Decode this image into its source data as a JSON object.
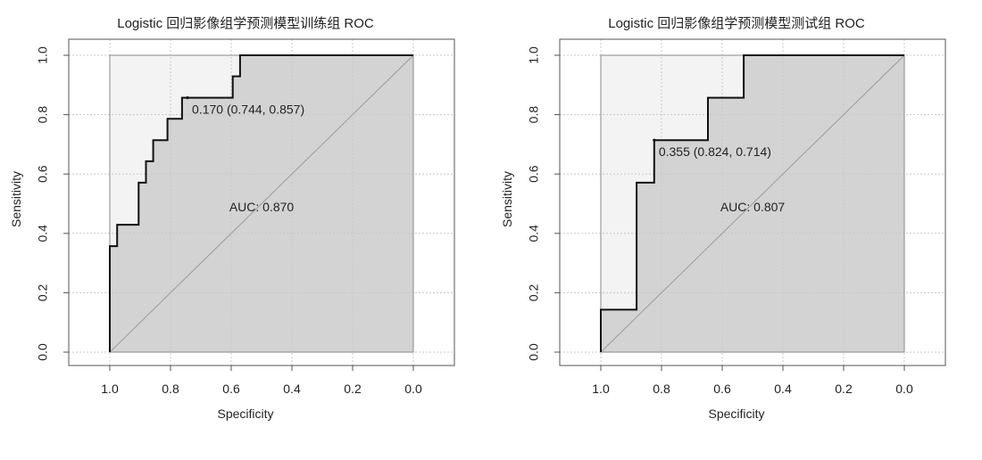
{
  "chart_data": [
    {
      "type": "line",
      "title": "Logistic 回归影像组学预测模型训练组 ROC",
      "xlabel": "Specificity",
      "ylabel": "Sensitivity",
      "xlim": [
        1.0,
        0.0
      ],
      "ylim": [
        0.0,
        1.0
      ],
      "x_reversed": true,
      "grid": true,
      "x_ticks": [
        "1.0",
        "0.8",
        "0.6",
        "0.4",
        "0.2",
        "0.0"
      ],
      "y_ticks": [
        "0.0",
        "0.2",
        "0.4",
        "0.6",
        "0.8",
        "1.0"
      ],
      "series": [
        {
          "specificity": [
            1.0,
            1.0,
            0.976,
            0.976,
            0.905,
            0.905,
            0.881,
            0.881,
            0.857,
            0.857,
            0.81,
            0.81,
            0.762,
            0.762,
            0.744,
            0.744,
            0.595,
            0.595,
            0.571,
            0.571,
            0.0
          ],
          "sensitivity": [
            0.0,
            0.357,
            0.357,
            0.429,
            0.429,
            0.571,
            0.571,
            0.643,
            0.643,
            0.714,
            0.714,
            0.786,
            0.786,
            0.857,
            0.857,
            0.857,
            0.857,
            0.929,
            0.929,
            1.0,
            1.0
          ]
        }
      ],
      "best_threshold": {
        "specificity": 0.744,
        "sensitivity": 0.857,
        "label": "0.170 (0.744, 0.857)"
      },
      "auc_label": "AUC: 0.870"
    },
    {
      "type": "line",
      "title": "Logistic 回归影像组学预测模型测试组 ROC",
      "xlabel": "Specificity",
      "ylabel": "Sensitivity",
      "xlim": [
        1.0,
        0.0
      ],
      "ylim": [
        0.0,
        1.0
      ],
      "x_reversed": true,
      "grid": true,
      "x_ticks": [
        "1.0",
        "0.8",
        "0.6",
        "0.4",
        "0.2",
        "0.0"
      ],
      "y_ticks": [
        "0.0",
        "0.2",
        "0.4",
        "0.6",
        "0.8",
        "1.0"
      ],
      "series": [
        {
          "specificity": [
            1.0,
            1.0,
            0.882,
            0.882,
            0.824,
            0.824,
            0.647,
            0.647,
            0.529,
            0.529,
            0.0
          ],
          "sensitivity": [
            0.0,
            0.143,
            0.143,
            0.571,
            0.571,
            0.714,
            0.714,
            0.857,
            0.857,
            1.0,
            1.0
          ]
        }
      ],
      "best_threshold": {
        "specificity": 0.824,
        "sensitivity": 0.714,
        "label": "0.355 (0.824, 0.714)"
      },
      "auc_label": "AUC: 0.807"
    }
  ],
  "colors": {
    "auc_fill": "#d3d3d3",
    "plot_bg": "#f3f3f3",
    "curve": "#111111",
    "grid": "#c8c8c8",
    "axis": "#555555"
  }
}
